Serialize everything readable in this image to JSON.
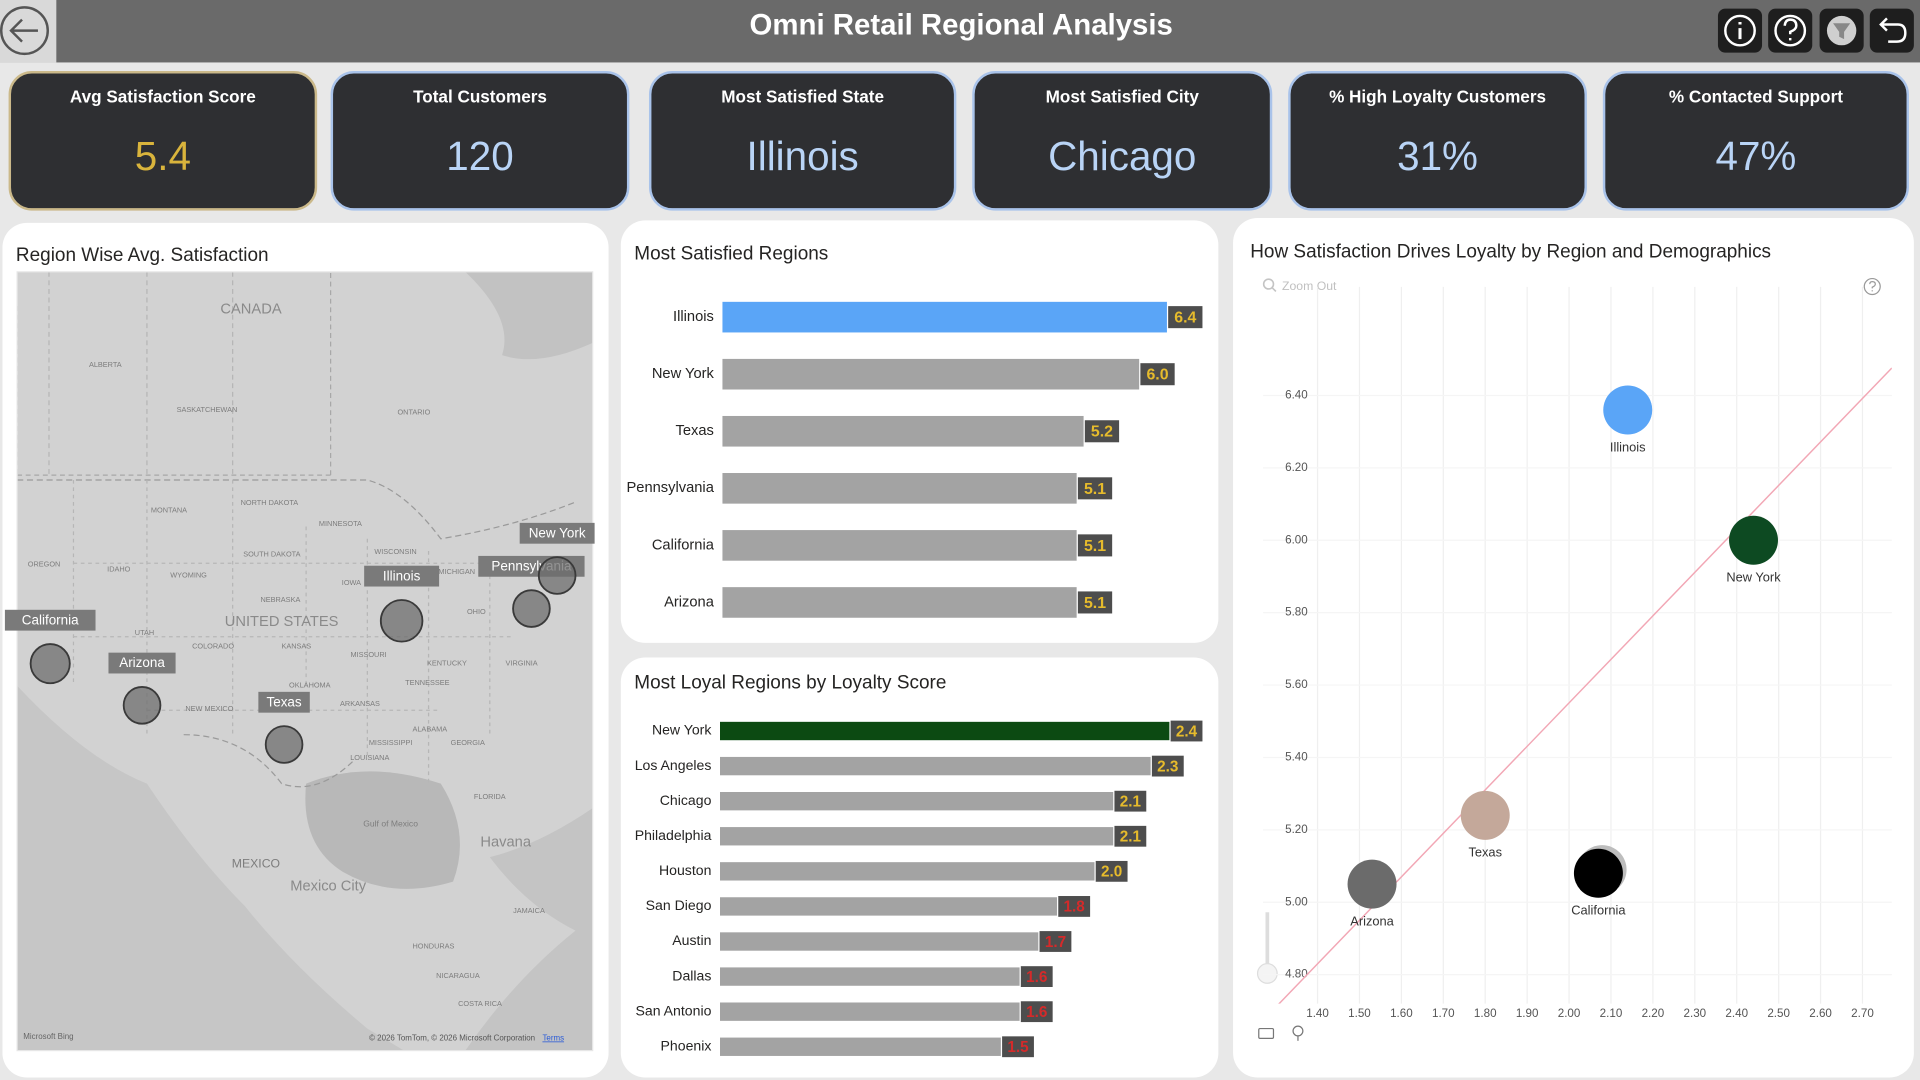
{
  "header": {
    "title": "Omni Retail Regional Analysis"
  },
  "cards": [
    {
      "label": "Avg Satisfaction Score",
      "value": "5.4"
    },
    {
      "label": "Total Customers",
      "value": "120"
    },
    {
      "label": "Most Satisfied State",
      "value": "Illinois"
    },
    {
      "label": "Most Satisfied City",
      "value": "Chicago"
    },
    {
      "label": "% High Loyalty Customers",
      "value": "31%"
    },
    {
      "label": "% Contacted Support",
      "value": "47%"
    }
  ],
  "map": {
    "title": "Region Wise Avg. Satisfaction",
    "regions": [
      "California",
      "Arizona",
      "Texas",
      "Illinois",
      "Pennsylvania",
      "New York"
    ],
    "places": [
      "CANADA",
      "UNITED STATES",
      "MEXICO",
      "Mexico City",
      "Havana",
      "Gulf of Mexico",
      "ALBERTA",
      "SASKATCHEWAN",
      "ONTARIO",
      "MONTANA",
      "NORTH DAKOTA",
      "SOUTH DAKOTA",
      "WYOMING",
      "NEBRASKA",
      "COLORADO",
      "KANSAS",
      "OKLAHOMA",
      "NEW MEXICO",
      "ARKANSAS",
      "MISSOURI",
      "OREGON",
      "IDAHO",
      "UTAH",
      "MINNESOTA",
      "WISCONSIN",
      "MICHIGAN",
      "IOWA",
      "OHIO",
      "KENTUCKY",
      "VIRGINIA",
      "TENNESSEE",
      "MISSISSIPPI",
      "ALABAMA",
      "GEORGIA",
      "LOUISIANA",
      "FLORIDA",
      "JAMAICA",
      "HONDURAS",
      "NICARAGUA",
      "COSTA RICA"
    ],
    "logo": "Microsoft Bing",
    "attribution": "© 2026 TomTom, © 2026 Microsoft Corporation",
    "terms": "Terms"
  },
  "chart_data": [
    {
      "type": "bar",
      "orientation": "horizontal",
      "title": "Most Satisfied Regions",
      "categories": [
        "Illinois",
        "New York",
        "Texas",
        "Pennsylvania",
        "California",
        "Arizona"
      ],
      "values": [
        6.4,
        6.0,
        5.2,
        5.1,
        5.1,
        5.1
      ],
      "value_labels": [
        "6.4",
        "6.0",
        "5.2",
        "5.1",
        "5.1",
        "5.1"
      ],
      "colors": [
        "#5aa5f7",
        "#a3a3a3",
        "#a3a3a3",
        "#a3a3a3",
        "#a3a3a3",
        "#a3a3a3"
      ],
      "label_colors": [
        "#e6bb2c",
        "#e6bb2c",
        "#e6bb2c",
        "#e6bb2c",
        "#e6bb2c",
        "#e6bb2c"
      ]
    },
    {
      "type": "bar",
      "orientation": "horizontal",
      "title": "Most Loyal Regions by Loyalty Score",
      "categories": [
        "New York",
        "Los Angeles",
        "Chicago",
        "Philadelphia",
        "Houston",
        "San Diego",
        "Austin",
        "Dallas",
        "San Antonio",
        "Phoenix"
      ],
      "values": [
        2.4,
        2.3,
        2.1,
        2.1,
        2.0,
        1.8,
        1.7,
        1.6,
        1.6,
        1.5
      ],
      "value_labels": [
        "2.4",
        "2.3",
        "2.1",
        "2.1",
        "2.0",
        "1.8",
        "1.7",
        "1.6",
        "1.6",
        "1.5"
      ],
      "colors": [
        "#0c4a12",
        "#a3a3a3",
        "#a3a3a3",
        "#a3a3a3",
        "#a3a3a3",
        "#a3a3a3",
        "#a3a3a3",
        "#a3a3a3",
        "#a3a3a3",
        "#a3a3a3"
      ],
      "label_colors": [
        "#e6bb2c",
        "#e6bb2c",
        "#e6bb2c",
        "#e6bb2c",
        "#e6bb2c",
        "#d42a2a",
        "#d42a2a",
        "#d42a2a",
        "#d42a2a",
        "#d42a2a"
      ]
    },
    {
      "type": "scatter",
      "title": "How Satisfaction Drives Loyalty by Region and Demographics",
      "zoom_label": "Zoom Out",
      "categories": [
        "Illinois",
        "New York",
        "Texas",
        "Arizona",
        "California"
      ],
      "x": [
        2.14,
        2.44,
        1.8,
        1.53,
        2.07
      ],
      "values": [
        6.36,
        6.0,
        5.24,
        5.05,
        5.08
      ],
      "colors": [
        "#5aa5f7",
        "#0d4a22",
        "#c4a89a",
        "#6b6b6b",
        "#000000"
      ],
      "trendline_color": "#f2a7b5",
      "xlim": [
        1.27,
        2.77
      ],
      "ylim": [
        4.72,
        6.7
      ],
      "xticks": [
        {
          "value": 1.4,
          "label": "1.40"
        },
        {
          "value": 1.5,
          "label": "1.50"
        },
        {
          "value": 1.6,
          "label": "1.60"
        },
        {
          "value": 1.7,
          "label": "1.70"
        },
        {
          "value": 1.8,
          "label": "1.80"
        },
        {
          "value": 1.9,
          "label": "1.90"
        },
        {
          "value": 2.0,
          "label": "2.00"
        },
        {
          "value": 2.1,
          "label": "2.10"
        },
        {
          "value": 2.2,
          "label": "2.20"
        },
        {
          "value": 2.3,
          "label": "2.30"
        },
        {
          "value": 2.4,
          "label": "2.40"
        },
        {
          "value": 2.5,
          "label": "2.50"
        },
        {
          "value": 2.6,
          "label": "2.60"
        },
        {
          "value": 2.7,
          "label": "2.70"
        }
      ],
      "yticks": [
        {
          "value": 4.8,
          "label": "4.80"
        },
        {
          "value": 5.0,
          "label": "5.00"
        },
        {
          "value": 5.2,
          "label": "5.20"
        },
        {
          "value": 5.4,
          "label": "5.40"
        },
        {
          "value": 5.6,
          "label": "5.60"
        },
        {
          "value": 5.8,
          "label": "5.80"
        },
        {
          "value": 6.0,
          "label": "6.00"
        },
        {
          "value": 6.2,
          "label": "6.20"
        },
        {
          "value": 6.4,
          "label": "6.40"
        }
      ],
      "grid": true
    }
  ]
}
